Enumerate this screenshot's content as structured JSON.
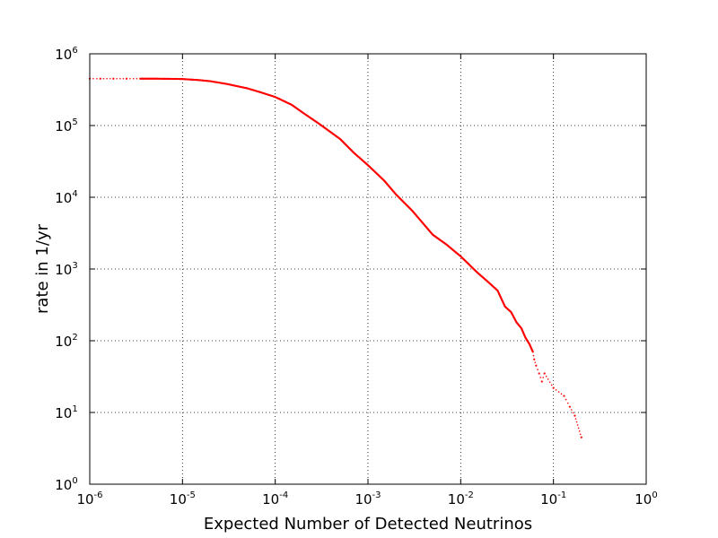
{
  "chart_data": {
    "type": "scatter",
    "title": "",
    "xlabel": "Expected Number of Detected Neutrinos",
    "ylabel": "rate in 1/yr",
    "xscale": "log",
    "yscale": "log",
    "xlim": [
      1e-06,
      1
    ],
    "ylim": [
      1,
      1000000
    ],
    "grid": true,
    "x_ticks": [
      {
        "base": "10",
        "exp": "-6",
        "value": 1e-06
      },
      {
        "base": "10",
        "exp": "-5",
        "value": 1e-05
      },
      {
        "base": "10",
        "exp": "-4",
        "value": 0.0001
      },
      {
        "base": "10",
        "exp": "-3",
        "value": 0.001
      },
      {
        "base": "10",
        "exp": "-2",
        "value": 0.01
      },
      {
        "base": "10",
        "exp": "-1",
        "value": 0.1
      },
      {
        "base": "10",
        "exp": "0",
        "value": 1
      }
    ],
    "y_ticks": [
      {
        "base": "10",
        "exp": "0",
        "value": 1
      },
      {
        "base": "10",
        "exp": "1",
        "value": 10
      },
      {
        "base": "10",
        "exp": "2",
        "value": 100
      },
      {
        "base": "10",
        "exp": "3",
        "value": 1000
      },
      {
        "base": "10",
        "exp": "4",
        "value": 10000
      },
      {
        "base": "10",
        "exp": "5",
        "value": 100000
      },
      {
        "base": "10",
        "exp": "6",
        "value": 1000000
      }
    ],
    "series": [
      {
        "color": "#ff0000",
        "marker": "dot",
        "points": [
          [
            1e-06,
            450000
          ],
          [
            1.3e-06,
            450000
          ],
          [
            1.8e-06,
            450000
          ],
          [
            2.5e-06,
            450000
          ],
          [
            3.5e-06,
            450000
          ],
          [
            5e-06,
            450000
          ],
          [
            7e-06,
            448000
          ],
          [
            1e-05,
            445000
          ],
          [
            1.5e-05,
            430000
          ],
          [
            2e-05,
            415000
          ],
          [
            3e-05,
            380000
          ],
          [
            5e-05,
            330000
          ],
          [
            7e-05,
            290000
          ],
          [
            0.0001,
            250000
          ],
          [
            0.00015,
            195000
          ],
          [
            0.0002,
            150000
          ],
          [
            0.0003,
            105000
          ],
          [
            0.0005,
            65000
          ],
          [
            0.0007,
            42000
          ],
          [
            0.001,
            28000
          ],
          [
            0.0015,
            17000
          ],
          [
            0.002,
            11000
          ],
          [
            0.003,
            6500
          ],
          [
            0.005,
            3000
          ],
          [
            0.007,
            2200
          ],
          [
            0.01,
            1500
          ],
          [
            0.015,
            900
          ],
          [
            0.02,
            650
          ],
          [
            0.025,
            500
          ],
          [
            0.03,
            300
          ],
          [
            0.035,
            250
          ],
          [
            0.04,
            180
          ],
          [
            0.045,
            150
          ],
          [
            0.05,
            110
          ],
          [
            0.055,
            90
          ],
          [
            0.06,
            70
          ],
          [
            0.062,
            55
          ],
          [
            0.065,
            45
          ],
          [
            0.07,
            35
          ],
          [
            0.075,
            27
          ],
          [
            0.08,
            35
          ],
          [
            0.1,
            22
          ],
          [
            0.13,
            17
          ],
          [
            0.15,
            12
          ],
          [
            0.17,
            9
          ],
          [
            0.2,
            4.5
          ]
        ]
      }
    ]
  }
}
